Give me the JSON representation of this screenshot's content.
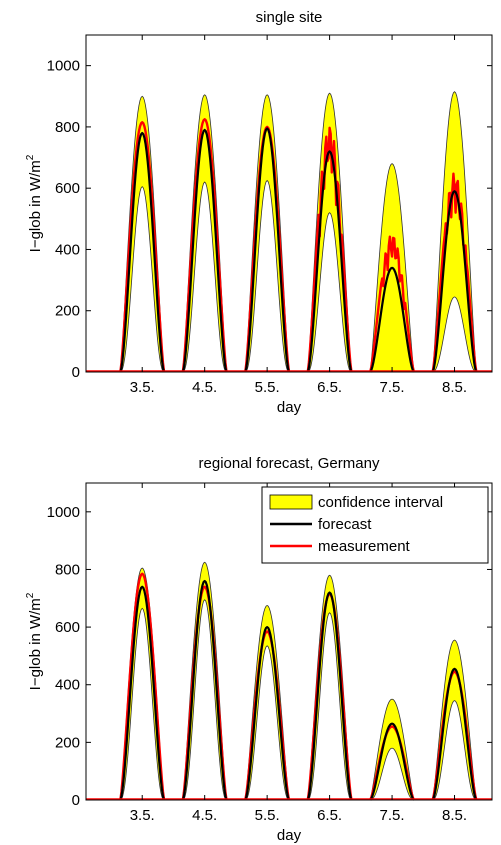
{
  "chart_data": [
    {
      "type": "area",
      "title": "single site",
      "xlabel": "day",
      "ylabel": "I−glob in W/m",
      "ylabel_sup": "2",
      "ylim": [
        0,
        1100
      ],
      "yticks": [
        0,
        200,
        400,
        600,
        800,
        1000
      ],
      "xlim": [
        2.6,
        9.1
      ],
      "xticks": [
        3.5,
        4.5,
        5.5,
        6.5,
        7.5,
        8.5
      ],
      "xticklabels": [
        "3.5.",
        "4.5.",
        "5.5.",
        "6.5.",
        "7.5.",
        "8.5."
      ],
      "days": [
        {
          "label": "3.5.",
          "center": 3.5,
          "ci_upper": 900,
          "ci_lower": 605,
          "forecast": 780,
          "measurement": 815
        },
        {
          "label": "4.5.",
          "center": 4.5,
          "ci_upper": 905,
          "ci_lower": 620,
          "forecast": 790,
          "measurement": 825
        },
        {
          "label": "5.5.",
          "center": 5.5,
          "ci_upper": 905,
          "ci_lower": 625,
          "forecast": 795,
          "measurement": 800
        },
        {
          "label": "6.5.",
          "center": 6.5,
          "ci_upper": 910,
          "ci_lower": 520,
          "forecast": 720,
          "measurement": 805
        },
        {
          "label": "7.5.",
          "center": 7.5,
          "ci_upper": 680,
          "ci_lower": 0,
          "forecast": 340,
          "measurement": 450
        },
        {
          "label": "8.5.",
          "center": 8.5,
          "ci_upper": 915,
          "ci_lower": 245,
          "forecast": 590,
          "measurement": 650
        }
      ],
      "series": [
        {
          "name": "confidence interval",
          "color": "#ffff00"
        },
        {
          "name": "forecast",
          "color": "#000000"
        },
        {
          "name": "measurement",
          "color": "#ff0000"
        }
      ],
      "legend": "none",
      "grid": false
    },
    {
      "type": "area",
      "title": "regional forecast, Germany",
      "xlabel": "day",
      "ylabel": "I−glob in W/m",
      "ylabel_sup": "2",
      "ylim": [
        0,
        1100
      ],
      "yticks": [
        0,
        200,
        400,
        600,
        800,
        1000
      ],
      "xlim": [
        2.6,
        9.1
      ],
      "xticks": [
        3.5,
        4.5,
        5.5,
        6.5,
        7.5,
        8.5
      ],
      "xticklabels": [
        "3.5.",
        "4.5.",
        "5.5.",
        "6.5.",
        "7.5.",
        "8.5."
      ],
      "days": [
        {
          "label": "3.5.",
          "center": 3.5,
          "ci_upper": 805,
          "ci_lower": 665,
          "forecast": 740,
          "measurement": 785
        },
        {
          "label": "4.5.",
          "center": 4.5,
          "ci_upper": 825,
          "ci_lower": 695,
          "forecast": 760,
          "measurement": 740
        },
        {
          "label": "5.5.",
          "center": 5.5,
          "ci_upper": 675,
          "ci_lower": 535,
          "forecast": 600,
          "measurement": 585
        },
        {
          "label": "6.5.",
          "center": 6.5,
          "ci_upper": 780,
          "ci_lower": 650,
          "forecast": 720,
          "measurement": 715
        },
        {
          "label": "7.5.",
          "center": 7.5,
          "ci_upper": 350,
          "ci_lower": 180,
          "forecast": 265,
          "measurement": 255
        },
        {
          "label": "8.5.",
          "center": 8.5,
          "ci_upper": 555,
          "ci_lower": 345,
          "forecast": 455,
          "measurement": 445
        }
      ],
      "series": [
        {
          "name": "confidence interval",
          "color": "#ffff00"
        },
        {
          "name": "forecast",
          "color": "#000000"
        },
        {
          "name": "measurement",
          "color": "#ff0000"
        }
      ],
      "legend": "top-right",
      "grid": false
    }
  ]
}
